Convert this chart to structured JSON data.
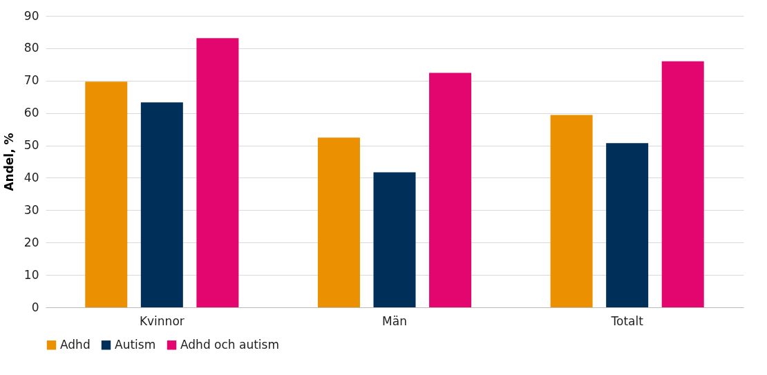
{
  "chart_data": {
    "type": "bar",
    "ylabel": "Andel, %",
    "categories": [
      "Kvinnor",
      "Män",
      "Totalt"
    ],
    "series": [
      {
        "name": "Adhd",
        "color": "#eb9000",
        "values": [
          69.7,
          52.4,
          59.4
        ]
      },
      {
        "name": "Autism",
        "color": "#002f5a",
        "values": [
          63.3,
          41.7,
          50.7
        ]
      },
      {
        "name": "Adhd och autism",
        "color": "#e2066e",
        "values": [
          83.1,
          72.4,
          76.0
        ]
      }
    ],
    "ylim": [
      0,
      90
    ],
    "yticks": [
      0,
      10,
      20,
      30,
      40,
      50,
      60,
      70,
      80,
      90
    ],
    "grid": "y",
    "legend": "bottom"
  }
}
